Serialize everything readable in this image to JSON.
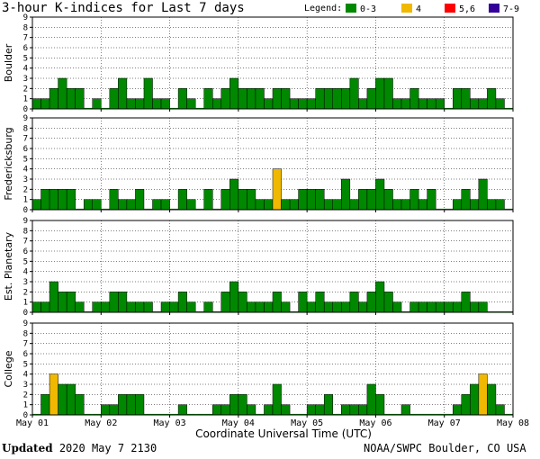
{
  "title": "3-hour K-indices for Last 7 days",
  "legend": {
    "label": "Legend:",
    "entries": [
      {
        "label": "0-3",
        "color": "#008800"
      },
      {
        "label": "4",
        "color": "#f0b800"
      },
      {
        "label": "5,6",
        "color": "#ff0000"
      },
      {
        "label": "7-9",
        "color": "#330099"
      }
    ]
  },
  "footer": {
    "updated_label": "Updated",
    "updated_value": "2020 May  7 2130",
    "source": "NOAA/SWPC Boulder, CO USA"
  },
  "chart_data": {
    "type": "bar",
    "xlabel": "Coordinate Universal Time (UTC)",
    "x_ticks": [
      "May 01",
      "May 02",
      "May 03",
      "May 04",
      "May 05",
      "May 06",
      "May 07",
      "May 08"
    ],
    "y_ticks": [
      "0",
      "1",
      "2",
      "3",
      "4",
      "5",
      "6",
      "7",
      "8",
      "9"
    ],
    "ylim": [
      0,
      9
    ],
    "bars_per_day": 8,
    "total_intervals": 56,
    "grid": "dotted-horizontal-and-vertical",
    "color_scale": [
      {
        "range": "0-3",
        "color": "#008800"
      },
      {
        "range": "4",
        "color": "#f0b800"
      },
      {
        "range": "5,6",
        "color": "#ff0000"
      },
      {
        "range": "7-9",
        "color": "#330099"
      }
    ],
    "panels": [
      {
        "name": "Boulder",
        "values": [
          1,
          1,
          2,
          3,
          2,
          2,
          0,
          1,
          0,
          2,
          3,
          1,
          1,
          3,
          1,
          1,
          0,
          2,
          1,
          0,
          2,
          1,
          2,
          3,
          2,
          2,
          2,
          1,
          2,
          2,
          1,
          1,
          1,
          2,
          2,
          2,
          2,
          3,
          1,
          2,
          3,
          3,
          1,
          1,
          2,
          1,
          1,
          1,
          0,
          2,
          2,
          1,
          1,
          2,
          1,
          0
        ]
      },
      {
        "name": "Fredericksburg",
        "values": [
          1,
          2,
          2,
          2,
          2,
          0,
          1,
          1,
          0,
          2,
          1,
          1,
          2,
          0,
          1,
          1,
          0,
          2,
          1,
          0,
          2,
          0,
          2,
          3,
          2,
          2,
          1,
          1,
          4,
          1,
          1,
          2,
          2,
          2,
          1,
          1,
          3,
          1,
          2,
          2,
          3,
          2,
          1,
          1,
          2,
          1,
          2,
          0,
          0,
          1,
          2,
          1,
          3,
          1,
          1,
          0
        ]
      },
      {
        "name": "Est. Planetary",
        "values": [
          1,
          1,
          3,
          2,
          2,
          1,
          0,
          1,
          1,
          2,
          2,
          1,
          1,
          1,
          0,
          1,
          1,
          2,
          1,
          0,
          1,
          0,
          2,
          3,
          2,
          1,
          1,
          1,
          2,
          1,
          0,
          2,
          1,
          2,
          1,
          1,
          1,
          2,
          1,
          2,
          3,
          2,
          1,
          0,
          1,
          1,
          1,
          1,
          1,
          1,
          2,
          1,
          1,
          0,
          0,
          0
        ]
      },
      {
        "name": "College",
        "values": [
          0,
          2,
          4,
          3,
          3,
          2,
          0,
          0,
          1,
          1,
          2,
          2,
          2,
          0,
          0,
          0,
          0,
          1,
          0,
          0,
          0,
          1,
          1,
          2,
          2,
          1,
          0,
          1,
          3,
          1,
          0,
          0,
          1,
          1,
          2,
          0,
          1,
          1,
          1,
          3,
          2,
          0,
          0,
          1,
          0,
          0,
          0,
          0,
          0,
          1,
          2,
          3,
          4,
          3,
          1,
          0
        ]
      }
    ]
  }
}
